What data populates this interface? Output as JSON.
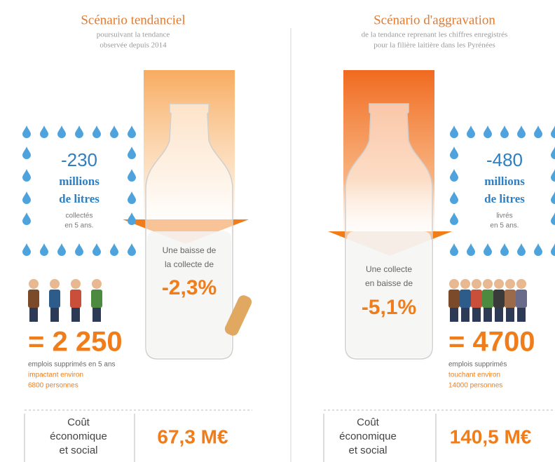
{
  "scenarios": [
    {
      "title": "Scénario tendanciel",
      "subtitle": [
        "poursuivant la tendance",
        "observée depuis 2014"
      ],
      "volume": {
        "value": "-230",
        "unit": [
          "millions",
          "de litres"
        ],
        "detail": [
          "collectés",
          "en 5 ans."
        ]
      },
      "bottle": {
        "caption": [
          "Une baisse de",
          "la collecte de"
        ],
        "rate": "-2,3%"
      },
      "jobs": {
        "value": "= 2 250",
        "caption": [
          "emplois supprimés en 5 ans"
        ],
        "impact": [
          "impactant environ",
          "6800 personnes"
        ]
      },
      "cost": {
        "label": [
          "Coût",
          "économique",
          "et social"
        ],
        "value": "67,3 M€"
      }
    },
    {
      "title": "Scénario d'aggravation",
      "subtitle": [
        "de la tendance reprenant les chiffres enregistrés",
        "pour la filière laitière dans les Pyrénées"
      ],
      "volume": {
        "value": "-480",
        "unit": [
          "millions",
          "de litres"
        ],
        "detail": [
          "livrés",
          "en 5 ans."
        ]
      },
      "bottle": {
        "caption": [
          "Une collecte",
          "en baisse de"
        ],
        "rate": "-5,1%"
      },
      "jobs": {
        "value": "= 4700",
        "caption": [
          "emplois supprimés"
        ],
        "impact": [
          "touchant environ",
          "14000 personnes"
        ]
      },
      "cost": {
        "label": [
          "Coût",
          "économique",
          "et social"
        ],
        "value": "140,5 M€"
      }
    }
  ]
}
